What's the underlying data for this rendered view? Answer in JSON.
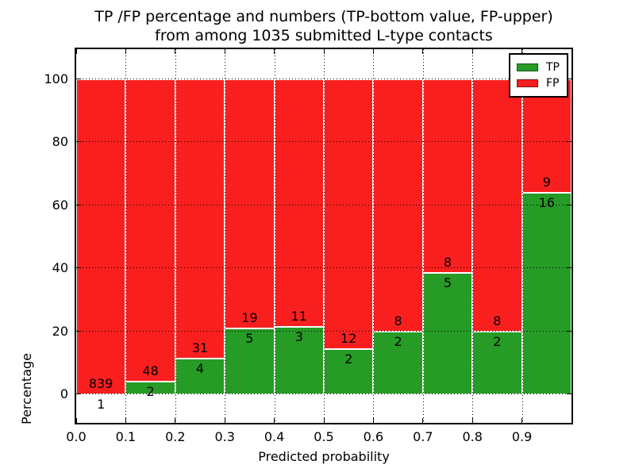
{
  "figure": {
    "title_line1": "TP /FP percentage and numbers (TP-bottom value, FP-upper)",
    "title_line2": "from among 1035 submitted L-type contacts"
  },
  "chart_data": {
    "type": "bar",
    "stacked": true,
    "title": "TP /FP percentage and numbers (TP-bottom value, FP-upper) from among 1035 submitted L-type contacts",
    "xlabel": "Predicted probability",
    "ylabel": "Percentage",
    "xlim": [
      0.0,
      1.0
    ],
    "ylim": [
      -9,
      109.5
    ],
    "x_tick_labels": [
      "0.0",
      "0.1",
      "0.2",
      "0.3",
      "0.4",
      "0.5",
      "0.6",
      "0.7",
      "0.8",
      "0.9"
    ],
    "y_tick_values": [
      0,
      20,
      40,
      60,
      80,
      100
    ],
    "grid": "dotted",
    "legend_position": "upper-right",
    "bins": [
      {
        "range": [
          0.0,
          0.1
        ],
        "tp": 1,
        "fp": 839
      },
      {
        "range": [
          0.1,
          0.2
        ],
        "tp": 2,
        "fp": 48
      },
      {
        "range": [
          0.2,
          0.3
        ],
        "tp": 4,
        "fp": 31
      },
      {
        "range": [
          0.3,
          0.4
        ],
        "tp": 5,
        "fp": 19
      },
      {
        "range": [
          0.4,
          0.5
        ],
        "tp": 3,
        "fp": 11
      },
      {
        "range": [
          0.5,
          0.6
        ],
        "tp": 2,
        "fp": 12
      },
      {
        "range": [
          0.6,
          0.7
        ],
        "tp": 2,
        "fp": 8
      },
      {
        "range": [
          0.7,
          0.8
        ],
        "tp": 5,
        "fp": 8
      },
      {
        "range": [
          0.8,
          0.9
        ],
        "tp": 2,
        "fp": 8
      },
      {
        "range": [
          0.9,
          1.0
        ],
        "tp": 16,
        "fp": 9
      }
    ],
    "series": [
      {
        "name": "TP",
        "color": "#269b26",
        "values_pct": [
          0.1,
          4.0,
          11.4,
          20.8,
          21.4,
          14.3,
          20.0,
          38.5,
          20.0,
          64.0
        ]
      },
      {
        "name": "FP",
        "color": "#fa1f1f",
        "values_pct": [
          99.9,
          96.0,
          88.6,
          79.2,
          78.6,
          85.7,
          80.0,
          61.5,
          80.0,
          36.0
        ]
      }
    ],
    "legend": [
      {
        "label": "TP",
        "color": "#269b26"
      },
      {
        "label": "FP",
        "color": "#fa1f1f"
      }
    ]
  }
}
